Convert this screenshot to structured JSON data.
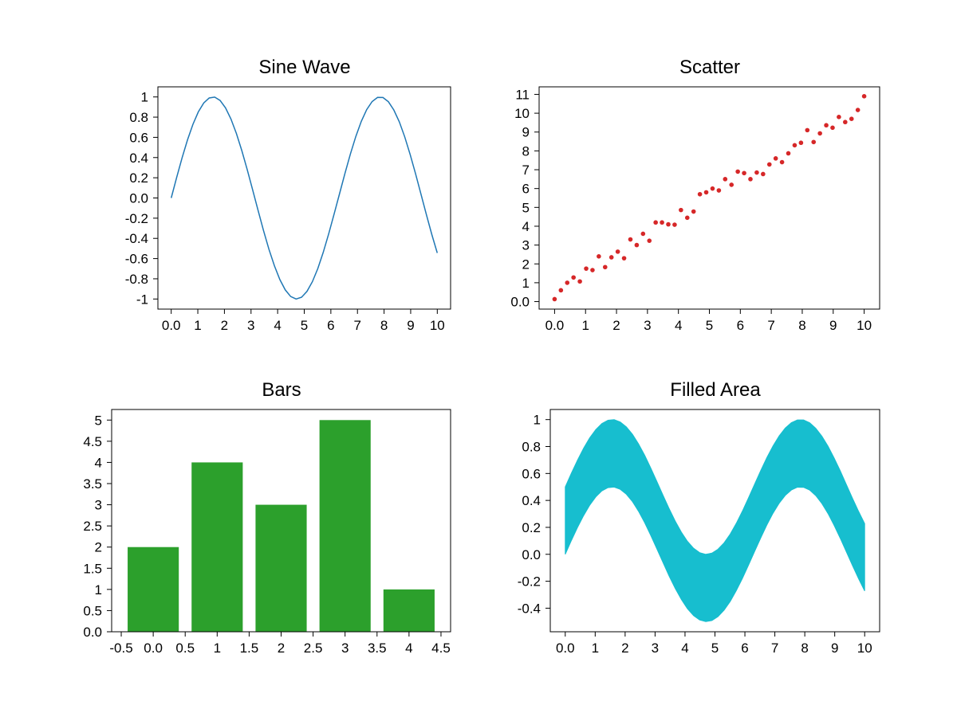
{
  "chart_data": [
    {
      "type": "line",
      "title": "Sine Wave",
      "color": "#1f77b4",
      "function": "sin(x)",
      "x_range": [
        0,
        10
      ],
      "n_points": 50,
      "xlim": [
        -0.5,
        10.5
      ],
      "ylim": [
        -1.1,
        1.1
      ],
      "xticks": [
        0,
        1,
        2,
        3,
        4,
        5,
        6,
        7,
        8,
        9,
        10
      ],
      "xticklabels": [
        "0.0",
        "1",
        "2",
        "3",
        "4",
        "5",
        "6",
        "7",
        "8",
        "9",
        "10"
      ],
      "yticks": [
        1,
        0.8,
        0.6,
        0.4,
        0.2,
        0,
        -0.2,
        -0.4,
        -0.6,
        -0.8,
        -1
      ],
      "yticklabels": [
        "1",
        "0.8",
        "0.6",
        "0.4",
        "0.2",
        "0.0",
        "-0.2",
        "-0.4",
        "-0.6",
        "-0.8",
        "-1"
      ]
    },
    {
      "type": "scatter",
      "title": "Scatter",
      "color": "#d62728",
      "x_range": [
        0,
        10
      ],
      "y": [
        0.13,
        0.6,
        1.0,
        1.28,
        1.07,
        1.75,
        1.67,
        2.4,
        1.83,
        2.35,
        2.65,
        2.3,
        3.3,
        3.0,
        3.6,
        3.23,
        4.2,
        4.2,
        4.1,
        4.08,
        4.86,
        4.45,
        4.78,
        5.7,
        5.8,
        6.0,
        5.9,
        6.5,
        6.2,
        6.9,
        6.82,
        6.5,
        6.85,
        6.77,
        7.28,
        7.6,
        7.4,
        7.87,
        8.3,
        8.43,
        9.1,
        8.47,
        8.93,
        9.36,
        9.23,
        9.8,
        9.53,
        9.7,
        10.17,
        10.9
      ],
      "xlim": [
        -0.5,
        10.5
      ],
      "ylim": [
        -0.4,
        11.4
      ],
      "xticks": [
        0,
        1,
        2,
        3,
        4,
        5,
        6,
        7,
        8,
        9,
        10
      ],
      "xticklabels": [
        "0.0",
        "1",
        "2",
        "3",
        "4",
        "5",
        "6",
        "7",
        "8",
        "9",
        "10"
      ],
      "yticks": [
        0,
        1,
        2,
        3,
        4,
        5,
        6,
        7,
        8,
        9,
        10,
        11
      ],
      "yticklabels": [
        "0.0",
        "1",
        "2",
        "3",
        "4",
        "5",
        "6",
        "7",
        "8",
        "9",
        "10",
        "11"
      ]
    },
    {
      "type": "bar",
      "title": "Bars",
      "color": "#2ca02c",
      "categories": [
        0,
        1,
        2,
        3,
        4
      ],
      "values": [
        2,
        4,
        3,
        5,
        1
      ],
      "bar_width": 0.8,
      "xlim": [
        -0.65,
        4.65
      ],
      "ylim": [
        0,
        5.25
      ],
      "xticks": [
        -0.5,
        0,
        0.5,
        1,
        1.5,
        2,
        2.5,
        3,
        3.5,
        4,
        4.5
      ],
      "xticklabels": [
        "-0.5",
        "0.0",
        "0.5",
        "1",
        "1.5",
        "2",
        "2.5",
        "3",
        "3.5",
        "4",
        "4.5"
      ],
      "yticks": [
        0,
        0.5,
        1,
        1.5,
        2,
        2.5,
        3,
        3.5,
        4,
        4.5,
        5
      ],
      "yticklabels": [
        "0.0",
        "0.5",
        "1",
        "1.5",
        "2",
        "2.5",
        "3",
        "3.5",
        "4",
        "4.5",
        "5"
      ]
    },
    {
      "type": "area",
      "title": "Filled Area",
      "color": "#17becf",
      "lower_function": "0.5*sin(x)",
      "upper_function": "0.5*sin(x)+0.5",
      "x_range": [
        0,
        10
      ],
      "n_points": 50,
      "xlim": [
        -0.5,
        10.5
      ],
      "ylim": [
        -0.575,
        1.075
      ],
      "xticks": [
        0,
        1,
        2,
        3,
        4,
        5,
        6,
        7,
        8,
        9,
        10
      ],
      "xticklabels": [
        "0.0",
        "1",
        "2",
        "3",
        "4",
        "5",
        "6",
        "7",
        "8",
        "9",
        "10"
      ],
      "yticks": [
        1,
        0.8,
        0.6,
        0.4,
        0.2,
        0,
        -0.2,
        -0.4
      ],
      "yticklabels": [
        "1",
        "0.8",
        "0.6",
        "0.4",
        "0.2",
        "0.0",
        "-0.2",
        "-0.4"
      ]
    }
  ]
}
